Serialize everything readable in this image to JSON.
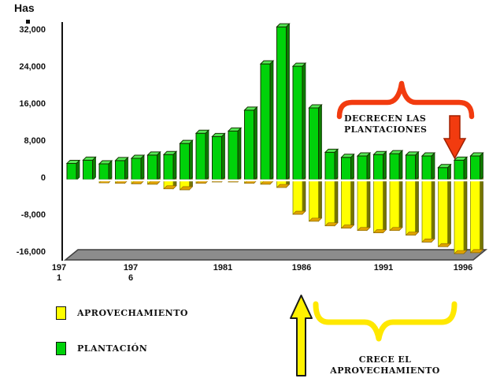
{
  "title": "Has",
  "legend": {
    "items": [
      {
        "label": "APROVECHAMIENTO",
        "color": "#FFFF00"
      },
      {
        "label": "PLANTACIÓN",
        "color": "#00D20A"
      }
    ]
  },
  "annotations": {
    "decrecen_text": "DECRECEN LAS\nPLANTACIONES",
    "crece_text": "CRECE EL\nAPROVECHAMIENTO",
    "red_color": "#F23B0F",
    "yellow_color": "#FFE800"
  },
  "chart_data": {
    "type": "bar",
    "title": "Has",
    "ylabel": "Has",
    "xlabel": "",
    "ylim": [
      -16000,
      34000
    ],
    "grid": false,
    "legend_position": "bottom-left",
    "y_ticks": [
      {
        "value": 32000,
        "label": "32,000"
      },
      {
        "value": 24000,
        "label": "24,000"
      },
      {
        "value": 16000,
        "label": "16,000"
      },
      {
        "value": 8000,
        "label": "8,000"
      },
      {
        "value": 0,
        "label": "0"
      },
      {
        "value": -8000,
        "label": "-8,000"
      },
      {
        "value": -16000,
        "label": "-16,000"
      }
    ],
    "x_ticks": [
      {
        "year": 1971,
        "label": "197\n1"
      },
      {
        "year": 1976,
        "label": "197\n6"
      },
      {
        "year": 1981,
        "label": "1981"
      },
      {
        "year": 1986,
        "label": "1986"
      },
      {
        "year": 1991,
        "label": "1991"
      },
      {
        "year": 1996,
        "label": "1996"
      }
    ],
    "years": [
      1971,
      1972,
      1973,
      1974,
      1975,
      1976,
      1977,
      1978,
      1979,
      1980,
      1981,
      1982,
      1983,
      1984,
      1985,
      1986,
      1987,
      1988,
      1989,
      1990,
      1991,
      1992,
      1993,
      1994,
      1995,
      1996
    ],
    "series": [
      {
        "name": "PLANTACIÓN",
        "color": "#00D20A",
        "values": [
          3500,
          4200,
          3400,
          4100,
          4600,
          5300,
          5400,
          7800,
          10000,
          9300,
          10500,
          15000,
          25000,
          33000,
          24500,
          15500,
          5900,
          4800,
          5100,
          5400,
          5600,
          5300,
          5100,
          2600,
          4200,
          5100
        ]
      },
      {
        "name": "APROVECHAMIENTO",
        "color": "#FFFF00",
        "values": [
          0,
          0,
          -700,
          -800,
          -900,
          -1000,
          -2000,
          -2200,
          -800,
          -500,
          -500,
          -800,
          -1000,
          -1700,
          -7500,
          -9000,
          -10000,
          -10500,
          -11000,
          -11500,
          -11000,
          -12000,
          -13500,
          -14500,
          -16000,
          -15800
        ]
      }
    ]
  }
}
